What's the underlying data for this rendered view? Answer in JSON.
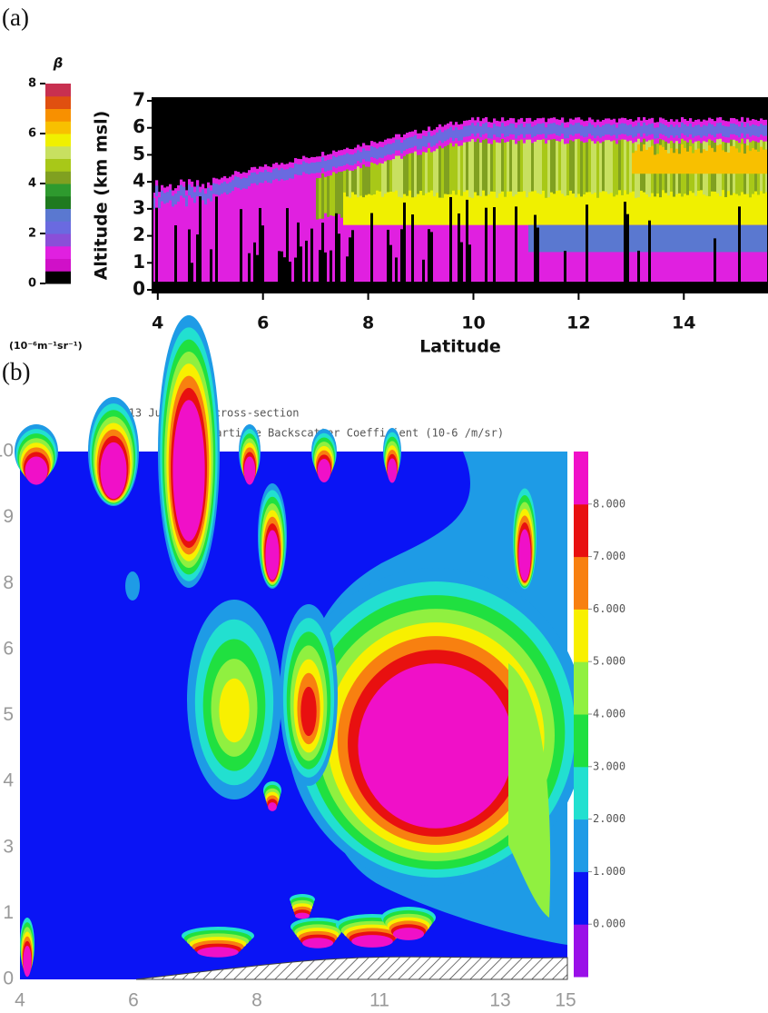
{
  "chart_data": [
    {
      "type": "heatmap",
      "panel_label": "(a)",
      "x_label": "Latitude",
      "y_label": "Altitude (km msl)",
      "xlim": [
        3.9,
        15.6
      ],
      "xticks": [
        4,
        6,
        8,
        10,
        12,
        14
      ],
      "ylim": [
        -0.1,
        7.1
      ],
      "yticks": [
        0,
        1,
        2,
        3,
        4,
        5,
        6,
        7
      ],
      "colorbar": {
        "title": "β",
        "units": "(10⁻⁶m⁻¹sr⁻¹)",
        "lim": [
          0,
          8
        ],
        "ticks": [
          0,
          2,
          4,
          6,
          8
        ],
        "colors": [
          "#000000",
          "#d010c8",
          "#e020e0",
          "#8a4fd8",
          "#6a6ae0",
          "#5a78d0",
          "#1f7a1f",
          "#2e9a2e",
          "#80a020",
          "#a8c818",
          "#c8e060",
          "#f0f000",
          "#f8c000",
          "#f89000",
          "#e05010",
          "#c83050"
        ]
      }
    },
    {
      "type": "contour",
      "panel_label": "(b)",
      "title": "L2 13 June 2006 cross-section",
      "subtitle": "Particle Backscatter Coefficient (10-6 /m/sr)",
      "x_categories": [
        "4",
        "6",
        "8",
        "11",
        "13",
        "15"
      ],
      "y_categories": [
        "0",
        "1",
        "3",
        "4",
        "5",
        "6",
        "8",
        "9",
        "10"
      ],
      "colorbar": {
        "lim": [
          -1,
          9
        ],
        "ticks": [
          {
            "value": 0,
            "label": "0.000"
          },
          {
            "value": 1,
            "label": "1.000"
          },
          {
            "value": 2,
            "label": "2.000"
          },
          {
            "value": 3,
            "label": "3.000"
          },
          {
            "value": 4,
            "label": "4.000"
          },
          {
            "value": 5,
            "label": "5.000"
          },
          {
            "value": 6,
            "label": "6.000"
          },
          {
            "value": 7,
            "label": "7.000"
          },
          {
            "value": 8,
            "label": "8.000"
          }
        ],
        "colors": [
          "#9a10e8",
          "#0a14f5",
          "#1e9be6",
          "#22e0d0",
          "#20e040",
          "#90f040",
          "#f8f000",
          "#f88010",
          "#e81010",
          "#f010c8"
        ]
      }
    }
  ]
}
